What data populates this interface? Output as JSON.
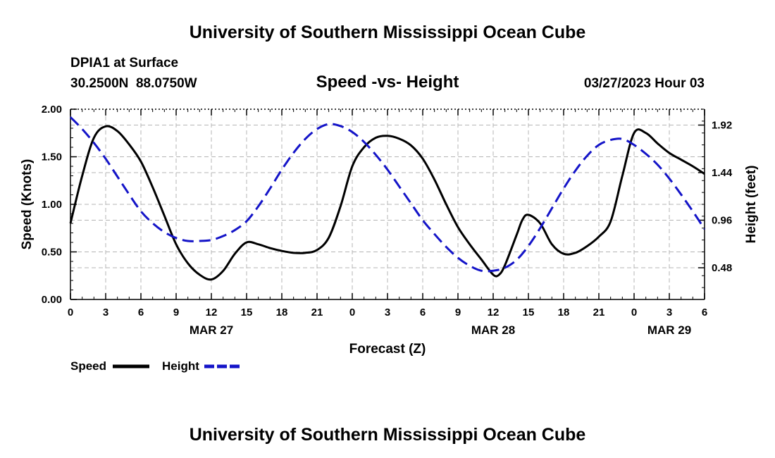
{
  "header": {
    "title": "University of Southern Mississippi Ocean Cube",
    "station": "DPIA1 at Surface",
    "coords": "30.2500N  88.0750W",
    "subtitle": "Speed -vs- Height",
    "datetime": "03/27/2023 Hour 03",
    "footer_title": "University of Southern Mississippi Ocean Cube"
  },
  "chart_data": {
    "type": "line",
    "title": "Speed -vs- Height",
    "xlabel": "Forecast (Z)",
    "ylabel_left": "Speed (Knots)",
    "ylabel_right": "Height (feet)",
    "x_range_hours": [
      0,
      54
    ],
    "x_tick_hours": [
      0,
      3,
      6,
      9,
      12,
      15,
      18,
      21,
      24,
      27,
      30,
      33,
      36,
      39,
      42,
      45,
      48,
      51,
      54
    ],
    "x_tick_labels": [
      "0",
      "3",
      "6",
      "9",
      "12",
      "15",
      "18",
      "21",
      "0",
      "3",
      "6",
      "9",
      "12",
      "15",
      "18",
      "21",
      "0",
      "3",
      "6"
    ],
    "date_labels": [
      {
        "hour": 12,
        "label": "MAR 27"
      },
      {
        "hour": 36,
        "label": "MAR 28"
      },
      {
        "hour": 51,
        "label": "MAR 29"
      }
    ],
    "y_left": {
      "range": [
        0,
        2
      ],
      "ticks": [
        0,
        0.5,
        1.0,
        1.5,
        2.0
      ],
      "tick_labels": [
        "0.00",
        "0.50",
        "1.00",
        "1.50",
        "2.00"
      ]
    },
    "y_right": {
      "range": [
        0.16,
        2.08
      ],
      "ticks": [
        0.48,
        0.96,
        1.44,
        1.92
      ],
      "tick_labels": [
        "0.48",
        "0.96",
        "1.44",
        "1.92"
      ]
    },
    "grid": true,
    "legend_position": "bottom-left",
    "series": [
      {
        "name": "Speed",
        "axis": "left",
        "color": "#000000",
        "style": "solid",
        "x": [
          0,
          1,
          2,
          3,
          4,
          5,
          6,
          7,
          8,
          9,
          10,
          11,
          12,
          13,
          14,
          15,
          16,
          17,
          18,
          19,
          20,
          21,
          22,
          23,
          24,
          25,
          26,
          27,
          28,
          29,
          30,
          31,
          32,
          33,
          34,
          35,
          36,
          36.5,
          37,
          38,
          38.5,
          39,
          40,
          41,
          42,
          43,
          44,
          45,
          46,
          47,
          48,
          49,
          50,
          51,
          52,
          53,
          54
        ],
        "values": [
          0.8,
          1.3,
          1.7,
          1.82,
          1.77,
          1.63,
          1.45,
          1.18,
          0.88,
          0.58,
          0.38,
          0.26,
          0.21,
          0.3,
          0.48,
          0.6,
          0.58,
          0.54,
          0.51,
          0.49,
          0.49,
          0.52,
          0.65,
          0.98,
          1.4,
          1.6,
          1.7,
          1.72,
          1.69,
          1.62,
          1.48,
          1.26,
          1.0,
          0.76,
          0.58,
          0.42,
          0.26,
          0.26,
          0.36,
          0.68,
          0.84,
          0.89,
          0.8,
          0.58,
          0.48,
          0.49,
          0.56,
          0.66,
          0.82,
          1.3,
          1.75,
          1.75,
          1.64,
          1.54,
          1.47,
          1.4,
          1.32
        ]
      },
      {
        "name": "Height",
        "axis": "right",
        "color": "#1414c8",
        "style": "dashed",
        "x": [
          0,
          1,
          2,
          3,
          4,
          5,
          6,
          7,
          8,
          9,
          10,
          11,
          12,
          13,
          14,
          15,
          16,
          17,
          18,
          19,
          20,
          21,
          22,
          23,
          24,
          25,
          26,
          27,
          28,
          29,
          30,
          31,
          32,
          33,
          34,
          35,
          36,
          37,
          38,
          39,
          40,
          41,
          42,
          43,
          44,
          45,
          46,
          47,
          48,
          49,
          50,
          51,
          52,
          53,
          54
        ],
        "values": [
          2.0,
          1.88,
          1.74,
          1.58,
          1.4,
          1.22,
          1.05,
          0.93,
          0.84,
          0.78,
          0.75,
          0.75,
          0.76,
          0.8,
          0.86,
          0.95,
          1.1,
          1.28,
          1.47,
          1.64,
          1.78,
          1.88,
          1.93,
          1.91,
          1.85,
          1.75,
          1.62,
          1.47,
          1.3,
          1.13,
          0.96,
          0.82,
          0.69,
          0.58,
          0.5,
          0.45,
          0.45,
          0.48,
          0.56,
          0.7,
          0.88,
          1.08,
          1.28,
          1.46,
          1.61,
          1.72,
          1.77,
          1.78,
          1.72,
          1.63,
          1.52,
          1.38,
          1.22,
          1.05,
          0.87
        ]
      }
    ]
  },
  "legend": {
    "speed_label": "Speed",
    "height_label": "Height"
  }
}
